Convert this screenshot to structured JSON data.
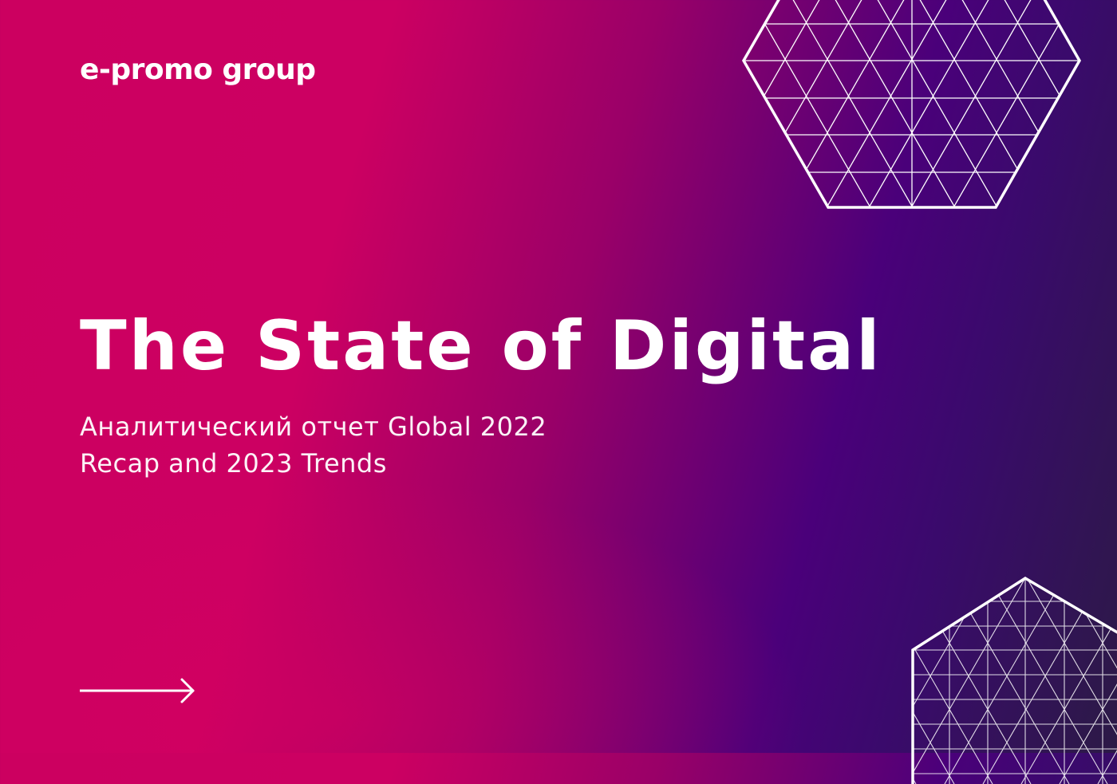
{
  "brand": {
    "logo_text": "e-promo group"
  },
  "hero": {
    "title": "The State of Digital",
    "subtitle_line1": "Аналитический отчет Global 2022",
    "subtitle_line2": "Recap and 2023 Trends"
  },
  "icons": {
    "arrow": "arrow-right-icon",
    "hex_top": "hexagon-grid-decoration",
    "hex_bottom": "hexagon-grid-decoration"
  },
  "colors": {
    "magenta": "#cc0060",
    "purple": "#4a007a",
    "dark_violet": "#2c1a46",
    "text": "#ffffff"
  }
}
